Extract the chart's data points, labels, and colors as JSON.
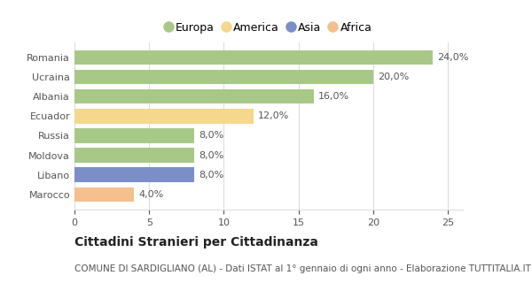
{
  "categories": [
    "Romania",
    "Ucraina",
    "Albania",
    "Ecuador",
    "Russia",
    "Moldova",
    "Libano",
    "Marocco"
  ],
  "values": [
    24.0,
    20.0,
    16.0,
    12.0,
    8.0,
    8.0,
    8.0,
    4.0
  ],
  "colors": [
    "#a8c888",
    "#a8c888",
    "#a8c888",
    "#f5d78e",
    "#a8c888",
    "#a8c888",
    "#7b8ec8",
    "#f5c08e"
  ],
  "labels": [
    "24,0%",
    "20,0%",
    "16,0%",
    "12,0%",
    "8,0%",
    "8,0%",
    "8,0%",
    "4,0%"
  ],
  "legend": [
    {
      "label": "Europa",
      "color": "#a8c888"
    },
    {
      "label": "America",
      "color": "#f5d78e"
    },
    {
      "label": "Asia",
      "color": "#7b8ec8"
    },
    {
      "label": "Africa",
      "color": "#f5c08e"
    }
  ],
  "xlim": [
    0,
    26
  ],
  "xticks": [
    0,
    5,
    10,
    15,
    20,
    25
  ],
  "title": "Cittadini Stranieri per Cittadinanza",
  "subtitle": "COMUNE DI SARDIGLIANO (AL) - Dati ISTAT al 1° gennaio di ogni anno - Elaborazione TUTTITALIA.IT",
  "background_color": "#ffffff",
  "grid_color": "#dddddd",
  "title_fontsize": 10,
  "subtitle_fontsize": 7.5,
  "label_fontsize": 8,
  "tick_fontsize": 8,
  "legend_fontsize": 9
}
